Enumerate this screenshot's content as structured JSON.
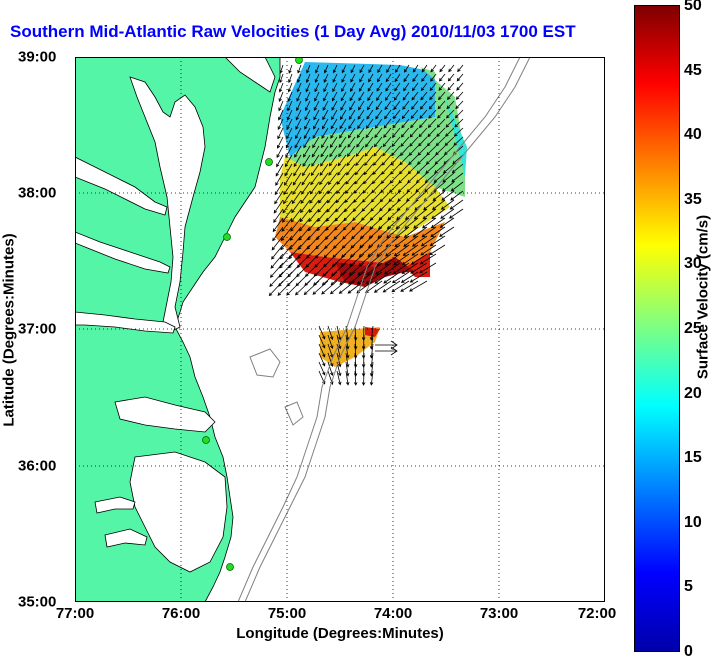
{
  "title": "Southern Mid-Atlantic Raw Velocities (1 Day Avg) 2010/11/03 1700 EST",
  "map": {
    "xlabel": "Longitude (Degrees:Minutes)",
    "ylabel": "Latitude (Degrees:Minutes)",
    "x_ticks": [
      "77:00",
      "76:00",
      "75:00",
      "74:00",
      "73:00",
      "72:00"
    ],
    "y_ticks": [
      "39:00",
      "38:00",
      "37:00",
      "36:00",
      "35:00"
    ],
    "lon_range_west": [
      77,
      72
    ],
    "lat_range": [
      35,
      39
    ],
    "grid": "dotted",
    "land_color": "#55f5a8",
    "water_color": "#ffffff",
    "coastline_color": "#000000",
    "bathymetry_color": "#808080",
    "station_color": "#22dd22"
  },
  "colorbar": {
    "label": "Surface Velocity (cm/s)",
    "ticks": [
      "50",
      "45",
      "40",
      "35",
      "30",
      "25",
      "20",
      "15",
      "10",
      "5",
      "0"
    ],
    "min": 0,
    "max": 50,
    "colormap": "jet"
  }
}
